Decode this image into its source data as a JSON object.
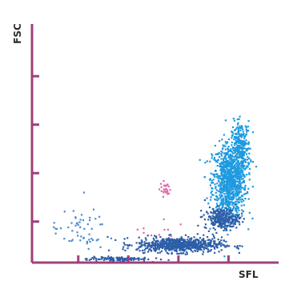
{
  "chart_data": {
    "type": "scatter",
    "title": "",
    "xlabel": "SFL",
    "ylabel": "FSC",
    "xlim": [
      0,
      320
    ],
    "ylim": [
      0,
      320
    ],
    "x_ticks": [
      60,
      125,
      190,
      255
    ],
    "y_ticks": [
      55,
      120,
      185,
      250
    ],
    "tick_labels_shown": false,
    "grid": false,
    "legend": "none",
    "axis_color": "#a0407a",
    "series": [
      {
        "color": "#1f9ae0",
        "clusters": [
          {
            "center": [
              255,
              110
            ],
            "spread": [
              22,
              50
            ],
            "count": 900
          },
          {
            "center": [
              270,
              155
            ],
            "spread": [
              12,
              35
            ],
            "count": 260
          }
        ]
      },
      {
        "color": "#2d5ea8",
        "clusters": [
          {
            "center": [
              190,
              25
            ],
            "spread": [
              55,
              10
            ],
            "count": 700
          },
          {
            "center": [
              245,
              60
            ],
            "spread": [
              22,
              14
            ],
            "count": 260
          },
          {
            "center": [
              110,
              6
            ],
            "spread": [
              40,
              3
            ],
            "count": 120
          }
        ]
      },
      {
        "color": "#e06aa8",
        "clusters": [
          {
            "center": [
              172,
              100
            ],
            "spread": [
              7,
              10
            ],
            "count": 26
          },
          {
            "center": [
              160,
              40
            ],
            "spread": [
              45,
              20
            ],
            "count": 10
          }
        ]
      },
      {
        "color": "#4a8ad0",
        "clusters": [
          {
            "center": [
              60,
              45
            ],
            "spread": [
              35,
              28
            ],
            "count": 55
          }
        ]
      }
    ]
  }
}
